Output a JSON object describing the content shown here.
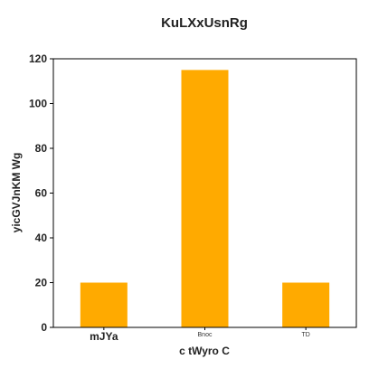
{
  "chart_data": {
    "type": "bar",
    "title": "KuLXxUsnRg",
    "xlabel": "c tWyro C",
    "ylabel": "yicGVJnKM Wg",
    "categories": [
      "mJYa",
      "Bnoc",
      "TD"
    ],
    "category_label_style": [
      "large",
      "small",
      "small"
    ],
    "values": [
      20,
      115,
      20
    ],
    "ylim": [
      0,
      120
    ],
    "yticks": [
      0,
      20,
      40,
      60,
      80,
      100,
      120
    ],
    "bar_color": "#FFAA00",
    "grid": false,
    "legend": "none"
  }
}
